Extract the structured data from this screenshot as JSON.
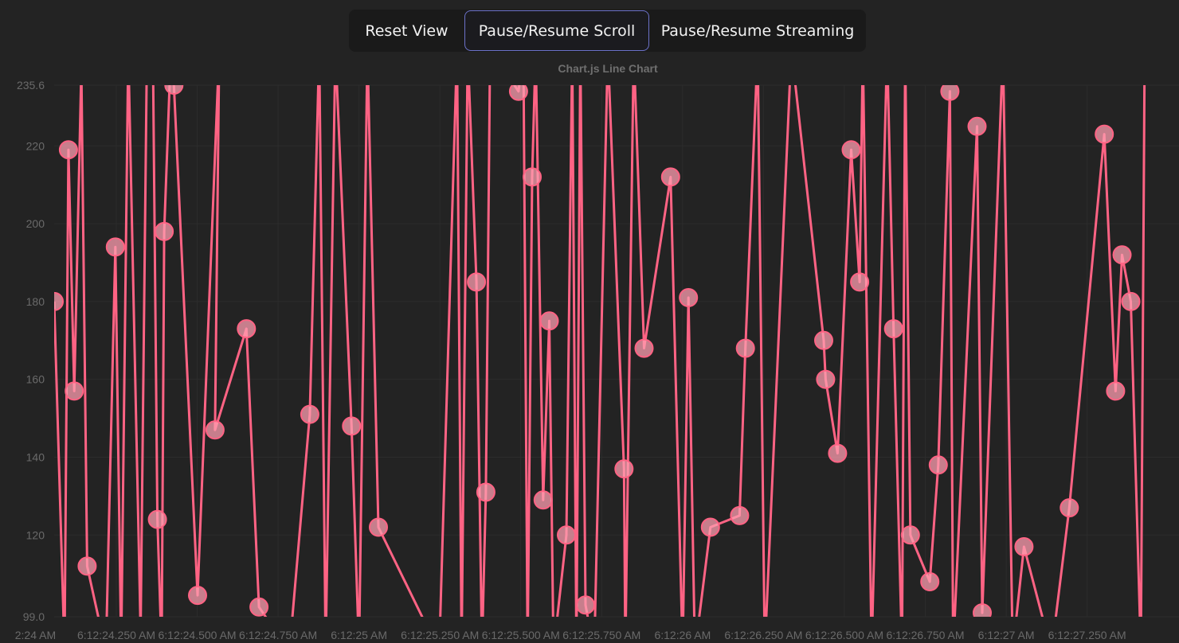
{
  "toolbar": {
    "reset_label": "Reset View",
    "scroll_label": "Pause/Resume Scroll",
    "stream_label": "Pause/Resume Streaming"
  },
  "chart_data": {
    "type": "line",
    "title": "Chart.js Line Chart",
    "ylim": [
      99.0,
      235.6
    ],
    "y_ticks": [
      "235.6",
      "220",
      "200",
      "180",
      "160",
      "140",
      "120",
      "99.0"
    ],
    "x_ticks": [
      "2:24 AM",
      "6:12:24.250 AM",
      "6:12:24.500 AM",
      "6:12:24.750 AM",
      "6:12:25 AM",
      "6:12:25.250 AM",
      "6:12:25.500 AM",
      "6:12:25.750 AM",
      "6:12:26 AM",
      "6:12:26.250 AM",
      "6:12:26.500 AM",
      "6:12:26.750 AM",
      "6:12:27 AM",
      "6:12:27.250 AM"
    ],
    "x_start_ms": 24058,
    "x_end_ms": 27534,
    "grid": true,
    "legend": "none",
    "colors": {
      "line": "#ff6384",
      "point_fill": "#ff9eb0",
      "point_stroke": "#ff6384",
      "grid": "#2c2c2c"
    },
    "series": [
      {
        "x_ms": [
          24058,
          24090,
          24102,
          24120,
          24142,
          24160,
          24218,
          24247,
          24265,
          24287,
          24325,
          24344,
          24363,
          24377,
          24390,
          24398,
          24419,
          24428,
          24501,
          24568,
          24555,
          24652,
          24691,
          24785,
          24848,
          24877,
          24897,
          24927,
          24977,
          25000,
          25026,
          25060,
          25248,
          25303,
          25317,
          25336,
          25363,
          25380,
          25392,
          25405,
          25493,
          25508,
          25521,
          25535,
          25546,
          25569,
          25588,
          25601,
          25641,
          25659,
          25672,
          25684,
          25700,
          25727,
          25769,
          25819,
          25823,
          25849,
          25881,
          25963,
          26000,
          26018,
          26038,
          26086,
          26176,
          26194,
          26232,
          26254,
          26336,
          26436,
          26442,
          26479,
          26521,
          26547,
          26557,
          26584,
          26632,
          26652,
          26678,
          26688,
          26704,
          26764,
          26790,
          26826,
          26836,
          26910,
          26926,
          26990,
          27020,
          27055,
          27140,
          27195,
          27303,
          27338,
          27358,
          27385,
          27416,
          27428
        ]
      }
    ]
  }
}
